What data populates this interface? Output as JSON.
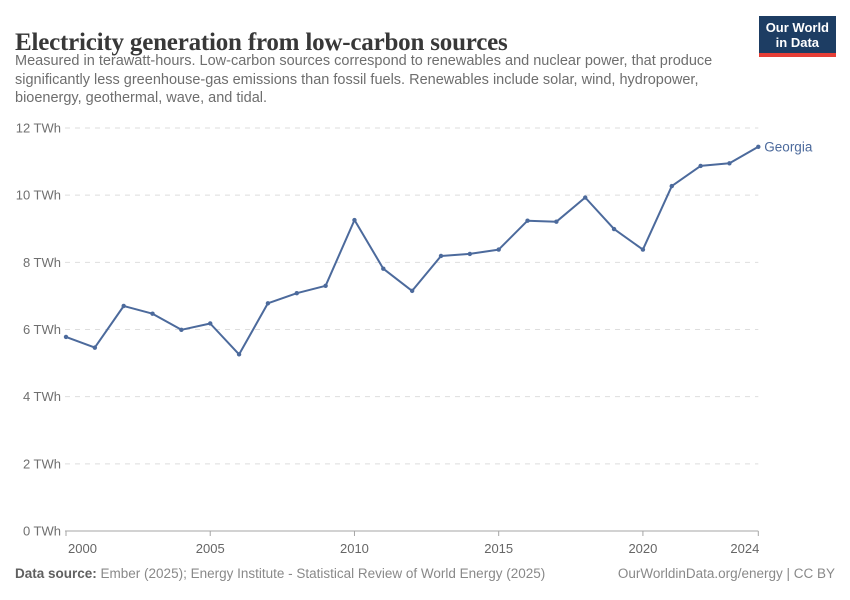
{
  "header": {
    "title": "Electricity generation from low-carbon sources",
    "subtitle_lines": [
      "Measured in terawatt-hours. Low-carbon sources correspond to renewables and nuclear power, that produce",
      "significantly less greenhouse-gas emissions than fossil fuels. Renewables include solar, wind, hydropower,",
      "bioenergy, geothermal, wave, and tidal."
    ],
    "logo": {
      "line1": "Our World",
      "line2": "in Data"
    }
  },
  "chart_data": {
    "type": "line",
    "title": "Electricity generation from low-carbon sources",
    "unit": "TWh",
    "x": [
      2000,
      2001,
      2002,
      2003,
      2004,
      2005,
      2006,
      2007,
      2008,
      2009,
      2010,
      2011,
      2012,
      2013,
      2014,
      2015,
      2016,
      2017,
      2018,
      2019,
      2020,
      2021,
      2022,
      2023,
      2024
    ],
    "series": [
      {
        "name": "Georgia",
        "color": "#4C6A9C",
        "values": [
          5.78,
          5.46,
          6.7,
          6.47,
          5.99,
          6.18,
          5.26,
          6.78,
          7.08,
          7.3,
          9.26,
          7.81,
          7.15,
          8.19,
          8.25,
          8.38,
          9.24,
          9.21,
          9.93,
          8.99,
          8.38,
          10.27,
          10.87,
          10.95,
          11.44
        ]
      }
    ],
    "xlim": [
      2000,
      2024
    ],
    "ylim": [
      0,
      12
    ],
    "xticks": [
      2000,
      2005,
      2010,
      2015,
      2020,
      2024
    ],
    "yticks": [
      0,
      2,
      4,
      6,
      8,
      10,
      12
    ],
    "ytick_suffix": " TWh",
    "grid": "dashed-horizontal",
    "legend_position": "end-of-line-label",
    "end_label": "Georgia"
  },
  "footer": {
    "source_label": "Data source:",
    "source_text": " Ember (2025); Energy Institute - Statistical Review of World Energy (2025)",
    "credit": "OurWorldinData.org/energy | CC BY"
  },
  "colors": {
    "series": "#4C6A9C",
    "gridline": "#dedede",
    "axis": "#a5a5a5",
    "tick_label": "#6f6f6f",
    "logo_bg": "#1d3d63",
    "logo_stripe": "#e63e36"
  }
}
